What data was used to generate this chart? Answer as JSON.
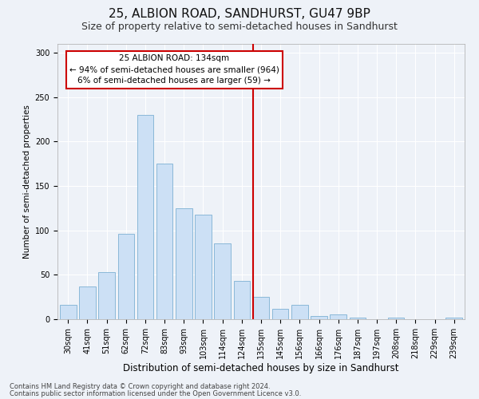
{
  "title": "25, ALBION ROAD, SANDHURST, GU47 9BP",
  "subtitle": "Size of property relative to semi-detached houses in Sandhurst",
  "xlabel": "Distribution of semi-detached houses by size in Sandhurst",
  "ylabel": "Number of semi-detached properties",
  "bar_labels": [
    "30sqm",
    "41sqm",
    "51sqm",
    "62sqm",
    "72sqm",
    "83sqm",
    "93sqm",
    "103sqm",
    "114sqm",
    "124sqm",
    "135sqm",
    "145sqm",
    "156sqm",
    "166sqm",
    "176sqm",
    "187sqm",
    "197sqm",
    "208sqm",
    "218sqm",
    "229sqm",
    "239sqm"
  ],
  "bar_values": [
    16,
    37,
    53,
    96,
    230,
    175,
    125,
    118,
    85,
    43,
    25,
    12,
    16,
    4,
    5,
    2,
    0,
    2,
    0,
    0,
    2
  ],
  "bar_color": "#cce0f5",
  "bar_edgecolor": "#8ab8d8",
  "vline_color": "#cc0000",
  "annotation_text": "25 ALBION ROAD: 134sqm\n← 94% of semi-detached houses are smaller (964)\n6% of semi-detached houses are larger (59) →",
  "annotation_box_facecolor": "#ffffff",
  "annotation_box_edgecolor": "#cc0000",
  "ylim": [
    0,
    310
  ],
  "yticks": [
    0,
    50,
    100,
    150,
    200,
    250,
    300
  ],
  "footer1": "Contains HM Land Registry data © Crown copyright and database right 2024.",
  "footer2": "Contains public sector information licensed under the Open Government Licence v3.0.",
  "background_color": "#eef2f8",
  "grid_color": "#ffffff",
  "title_fontsize": 11,
  "subtitle_fontsize": 9,
  "xlabel_fontsize": 8.5,
  "ylabel_fontsize": 7.5,
  "tick_fontsize": 7,
  "annotation_fontsize": 7.5,
  "footer_fontsize": 6
}
